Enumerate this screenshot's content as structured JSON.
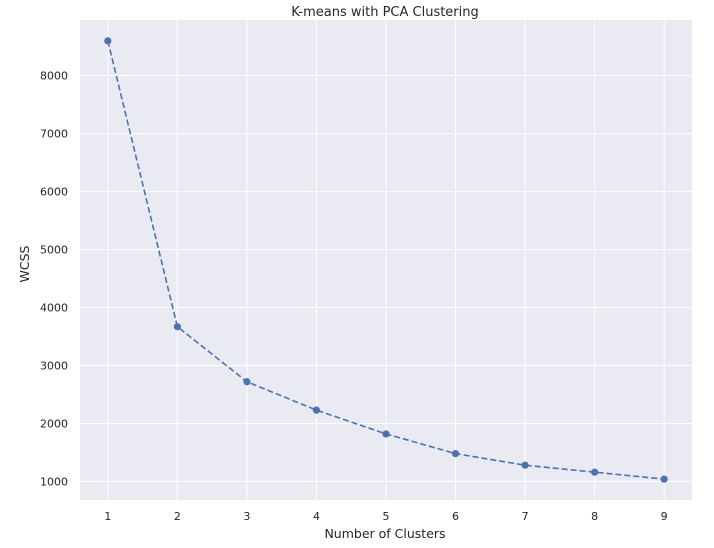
{
  "chart_data": {
    "type": "line",
    "title": "K-means with PCA Clustering",
    "xlabel": "Number of Clusters",
    "ylabel": "WCSS",
    "x": [
      1,
      2,
      3,
      4,
      5,
      6,
      7,
      8,
      9
    ],
    "series": [
      {
        "values": [
          8600,
          3670,
          2720,
          2230,
          1820,
          1480,
          1280,
          1160,
          1040
        ],
        "color": "#4c72b0",
        "line_style": "dashed",
        "marker": "circle"
      }
    ],
    "xticks": [
      1,
      2,
      3,
      4,
      5,
      6,
      7,
      8,
      9
    ],
    "yticks": [
      1000,
      2000,
      3000,
      4000,
      5000,
      6000,
      7000,
      8000
    ],
    "xlim": [
      0.6,
      9.4
    ],
    "ylim": [
      680,
      8960
    ],
    "grid": true,
    "background_color": "#eaeaf2",
    "grid_color": "#ffffff"
  }
}
